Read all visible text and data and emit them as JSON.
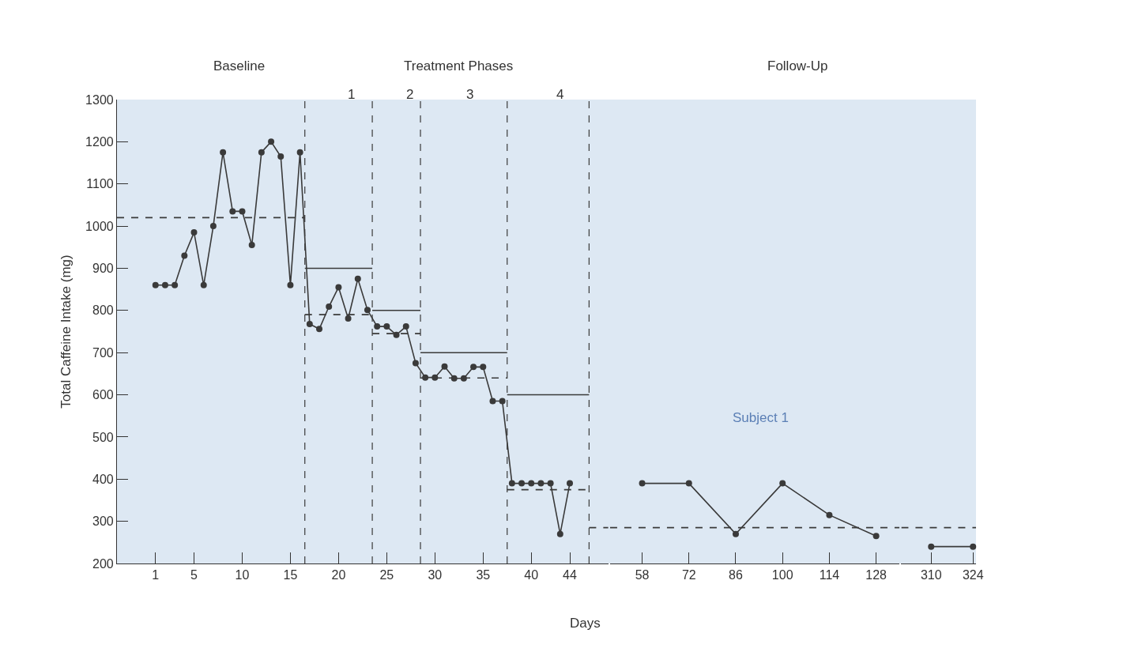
{
  "chart_data": [
    {
      "type": "line",
      "ylabel": "Total Caffeine Intake (mg)",
      "xlabel": "Days",
      "annotations": [
        "Baseline",
        "Treatment Phases",
        "1",
        "2",
        "3",
        "4"
      ],
      "xlim": [
        -3,
        48
      ],
      "xticks": [
        1,
        5,
        10,
        15,
        20,
        25,
        30,
        35,
        40,
        44
      ],
      "ylim": [
        200,
        1300
      ],
      "yticks": [
        200,
        300,
        400,
        500,
        600,
        700,
        800,
        900,
        1000,
        1100,
        1200,
        1300
      ],
      "grid": false,
      "marker": "circle",
      "ref_lines": [
        {
          "axis": "x",
          "value": 16.5,
          "line_style": "dashed",
          "color": "#3a3a3a"
        },
        {
          "axis": "x",
          "value": 23.5,
          "line_style": "dashed",
          "color": "#3a3a3a"
        },
        {
          "axis": "x",
          "value": 28.5,
          "line_style": "dashed",
          "color": "#3a3a3a"
        },
        {
          "axis": "x",
          "value": 37.5,
          "line_style": "dashed",
          "color": "#3a3a3a"
        },
        {
          "axis": "x",
          "value": 46,
          "line_style": "dashed",
          "color": "#3a3a3a"
        }
      ],
      "series": [
        {
          "color": "#3a3a3a",
          "x": [
            1,
            2,
            3,
            4,
            5,
            6,
            7,
            8,
            9,
            10,
            11,
            12,
            13,
            14,
            15,
            16,
            17,
            18,
            19,
            20,
            21,
            22,
            23,
            24,
            25,
            26,
            27,
            28,
            29,
            30,
            31,
            32,
            33,
            34,
            35,
            36,
            37,
            38,
            39,
            40,
            41,
            42,
            43,
            44
          ],
          "values": [
            860,
            860,
            860,
            930,
            985,
            860,
            1000,
            1175,
            1035,
            1035,
            955,
            1175,
            1200,
            1165,
            860,
            1175,
            768,
            756,
            809,
            855,
            781,
            875,
            801,
            762,
            762,
            742,
            762,
            675,
            641,
            641,
            667,
            639,
            639,
            666,
            666,
            585,
            585,
            390,
            390,
            390,
            390,
            390,
            270,
            390
          ]
        },
        {
          "color": "#3a3a3a",
          "marker": "none",
          "line_style": "solid",
          "x": [
            16.5,
            23.5
          ],
          "values": [
            900,
            900
          ]
        },
        {
          "color": "#3a3a3a",
          "marker": "none",
          "line_style": "solid",
          "x": [
            23.5,
            28.5
          ],
          "values": [
            800,
            800
          ]
        },
        {
          "color": "#3a3a3a",
          "marker": "none",
          "line_style": "solid",
          "x": [
            28.5,
            37.5
          ],
          "values": [
            700,
            700
          ]
        },
        {
          "color": "#3a3a3a",
          "marker": "none",
          "line_style": "solid",
          "x": [
            37.5,
            46
          ],
          "values": [
            600,
            600
          ]
        },
        {
          "color": "#3a3a3a",
          "marker": "none",
          "line_style": "dashed",
          "x": [
            -3,
            16.5
          ],
          "values": [
            1020,
            1020
          ]
        },
        {
          "color": "#3a3a3a",
          "marker": "none",
          "line_style": "dashed",
          "x": [
            16.5,
            23.5
          ],
          "values": [
            790,
            790
          ]
        },
        {
          "color": "#3a3a3a",
          "marker": "none",
          "line_style": "dashed",
          "x": [
            23.5,
            28.5
          ],
          "values": [
            745,
            745
          ]
        },
        {
          "color": "#3a3a3a",
          "marker": "none",
          "line_style": "dashed",
          "x": [
            28.5,
            37.5
          ],
          "values": [
            640,
            640
          ]
        },
        {
          "color": "#3a3a3a",
          "marker": "none",
          "line_style": "dashed",
          "x": [
            37.5,
            46
          ],
          "values": [
            375,
            375
          ]
        },
        {
          "color": "#3a3a3a",
          "marker": "none",
          "line_style": "dashed",
          "x": [
            46,
            48
          ],
          "values": [
            285,
            285
          ]
        }
      ]
    },
    {
      "type": "line",
      "annotations": [
        "Follow-Up",
        "Subject 1"
      ],
      "xlim": [
        48.4,
        135
      ],
      "xticks": [
        58,
        72,
        86,
        100,
        114,
        128
      ],
      "ylim": [
        200,
        1300
      ],
      "tick_labels": "x",
      "grid": false,
      "marker": "circle",
      "series": [
        {
          "color": "#3a3a3a",
          "x": [
            58,
            72,
            86,
            100,
            114,
            128
          ],
          "values": [
            390,
            390,
            270,
            390,
            315,
            265
          ]
        },
        {
          "color": "#3a3a3a",
          "marker": "none",
          "line_style": "dashed",
          "x": [
            48.4,
            135
          ],
          "values": [
            285,
            285
          ]
        }
      ]
    },
    {
      "type": "line",
      "xlim": [
        300,
        325
      ],
      "xticks": [
        310,
        324
      ],
      "ylim": [
        200,
        1300
      ],
      "tick_labels": "x",
      "grid": false,
      "marker": "circle",
      "series": [
        {
          "color": "#3a3a3a",
          "x": [
            310,
            324
          ],
          "values": [
            240,
            240
          ]
        },
        {
          "color": "#3a3a3a",
          "marker": "none",
          "line_style": "dashed",
          "x": [
            300,
            325
          ],
          "values": [
            285,
            285
          ]
        }
      ]
    }
  ]
}
